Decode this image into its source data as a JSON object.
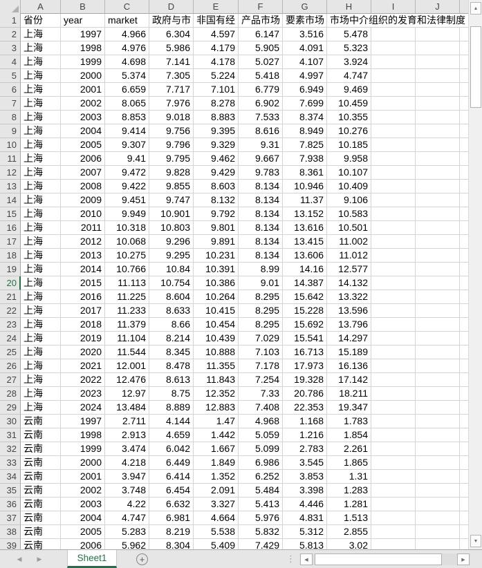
{
  "spreadsheet": {
    "selected_row": "20",
    "column_letters": [
      "A",
      "B",
      "C",
      "D",
      "E",
      "F",
      "G",
      "H",
      "I",
      "J"
    ],
    "header_row": {
      "row_number": "1",
      "cells": [
        "省份",
        "year",
        "market",
        "政府与市",
        "非国有经",
        "产品市场",
        "要素市场",
        "市场中介组织的发育和法律制度"
      ]
    },
    "rows": [
      [
        "2",
        "上海",
        "1997",
        "4.966",
        "6.304",
        "4.597",
        "6.147",
        "3.516",
        "5.478"
      ],
      [
        "3",
        "上海",
        "1998",
        "4.976",
        "5.986",
        "4.179",
        "5.905",
        "4.091",
        "5.323"
      ],
      [
        "4",
        "上海",
        "1999",
        "4.698",
        "7.141",
        "4.178",
        "5.027",
        "4.107",
        "3.924"
      ],
      [
        "5",
        "上海",
        "2000",
        "5.374",
        "7.305",
        "5.224",
        "5.418",
        "4.997",
        "4.747"
      ],
      [
        "6",
        "上海",
        "2001",
        "6.659",
        "7.717",
        "7.101",
        "6.779",
        "6.949",
        "9.469"
      ],
      [
        "7",
        "上海",
        "2002",
        "8.065",
        "7.976",
        "8.278",
        "6.902",
        "7.699",
        "10.459"
      ],
      [
        "8",
        "上海",
        "2003",
        "8.853",
        "9.018",
        "8.883",
        "7.533",
        "8.374",
        "10.355"
      ],
      [
        "9",
        "上海",
        "2004",
        "9.414",
        "9.756",
        "9.395",
        "8.616",
        "8.949",
        "10.276"
      ],
      [
        "10",
        "上海",
        "2005",
        "9.307",
        "9.796",
        "9.329",
        "9.31",
        "7.825",
        "10.185"
      ],
      [
        "11",
        "上海",
        "2006",
        "9.41",
        "9.795",
        "9.462",
        "9.667",
        "7.938",
        "9.958"
      ],
      [
        "12",
        "上海",
        "2007",
        "9.472",
        "9.828",
        "9.429",
        "9.783",
        "8.361",
        "10.107"
      ],
      [
        "13",
        "上海",
        "2008",
        "9.422",
        "9.855",
        "8.603",
        "8.134",
        "10.946",
        "10.409"
      ],
      [
        "14",
        "上海",
        "2009",
        "9.451",
        "9.747",
        "8.132",
        "8.134",
        "11.37",
        "9.106"
      ],
      [
        "15",
        "上海",
        "2010",
        "9.949",
        "10.901",
        "9.792",
        "8.134",
        "13.152",
        "10.583"
      ],
      [
        "16",
        "上海",
        "2011",
        "10.318",
        "10.803",
        "9.801",
        "8.134",
        "13.616",
        "10.501"
      ],
      [
        "17",
        "上海",
        "2012",
        "10.068",
        "9.296",
        "9.891",
        "8.134",
        "13.415",
        "11.002"
      ],
      [
        "18",
        "上海",
        "2013",
        "10.275",
        "9.295",
        "10.231",
        "8.134",
        "13.606",
        "11.012"
      ],
      [
        "19",
        "上海",
        "2014",
        "10.766",
        "10.84",
        "10.391",
        "8.99",
        "14.16",
        "12.577"
      ],
      [
        "20",
        "上海",
        "2015",
        "11.113",
        "10.754",
        "10.386",
        "9.01",
        "14.387",
        "14.132"
      ],
      [
        "21",
        "上海",
        "2016",
        "11.225",
        "8.604",
        "10.264",
        "8.295",
        "15.642",
        "13.322"
      ],
      [
        "22",
        "上海",
        "2017",
        "11.233",
        "8.633",
        "10.415",
        "8.295",
        "15.228",
        "13.596"
      ],
      [
        "23",
        "上海",
        "2018",
        "11.379",
        "8.66",
        "10.454",
        "8.295",
        "15.692",
        "13.796"
      ],
      [
        "24",
        "上海",
        "2019",
        "11.104",
        "8.214",
        "10.439",
        "7.029",
        "15.541",
        "14.297"
      ],
      [
        "25",
        "上海",
        "2020",
        "11.544",
        "8.345",
        "10.888",
        "7.103",
        "16.713",
        "15.189"
      ],
      [
        "26",
        "上海",
        "2021",
        "12.001",
        "8.478",
        "11.355",
        "7.178",
        "17.973",
        "16.136"
      ],
      [
        "27",
        "上海",
        "2022",
        "12.476",
        "8.613",
        "11.843",
        "7.254",
        "19.328",
        "17.142"
      ],
      [
        "28",
        "上海",
        "2023",
        "12.97",
        "8.75",
        "12.352",
        "7.33",
        "20.786",
        "18.211"
      ],
      [
        "29",
        "上海",
        "2024",
        "13.484",
        "8.889",
        "12.883",
        "7.408",
        "22.353",
        "19.347"
      ],
      [
        "30",
        "云南",
        "1997",
        "2.711",
        "4.144",
        "1.47",
        "4.968",
        "1.168",
        "1.783"
      ],
      [
        "31",
        "云南",
        "1998",
        "2.913",
        "4.659",
        "1.442",
        "5.059",
        "1.216",
        "1.854"
      ],
      [
        "32",
        "云南",
        "1999",
        "3.474",
        "6.042",
        "1.667",
        "5.099",
        "2.783",
        "2.261"
      ],
      [
        "33",
        "云南",
        "2000",
        "4.218",
        "6.449",
        "1.849",
        "6.986",
        "3.545",
        "1.865"
      ],
      [
        "34",
        "云南",
        "2001",
        "3.947",
        "6.414",
        "1.352",
        "6.252",
        "3.853",
        "1.31"
      ],
      [
        "35",
        "云南",
        "2002",
        "3.748",
        "6.454",
        "2.091",
        "5.484",
        "3.398",
        "1.283"
      ],
      [
        "36",
        "云南",
        "2003",
        "4.22",
        "6.632",
        "3.327",
        "5.413",
        "4.446",
        "1.281"
      ],
      [
        "37",
        "云南",
        "2004",
        "4.747",
        "6.981",
        "4.664",
        "5.976",
        "4.831",
        "1.513"
      ],
      [
        "38",
        "云南",
        "2005",
        "5.283",
        "8.219",
        "5.538",
        "5.832",
        "5.312",
        "2.855"
      ],
      [
        "39",
        "云南",
        "2006",
        "5.962",
        "8.304",
        "5.409",
        "7.429",
        "5.813",
        "3.02"
      ]
    ]
  },
  "tab_bar": {
    "sheet_tabs": [
      {
        "label": "Sheet1",
        "active": true
      }
    ],
    "icons": {
      "nav_left": "◀",
      "nav_right": "▶",
      "add_sheet": "+",
      "grip": "⋮",
      "scroll_left": "◀",
      "scroll_right": "▶",
      "scroll_up": "▲",
      "scroll_down": "▼"
    }
  },
  "colors": {
    "accent_green": "#217346",
    "header_bg": "#e6e6e6",
    "gridline": "#d4d4d4"
  }
}
